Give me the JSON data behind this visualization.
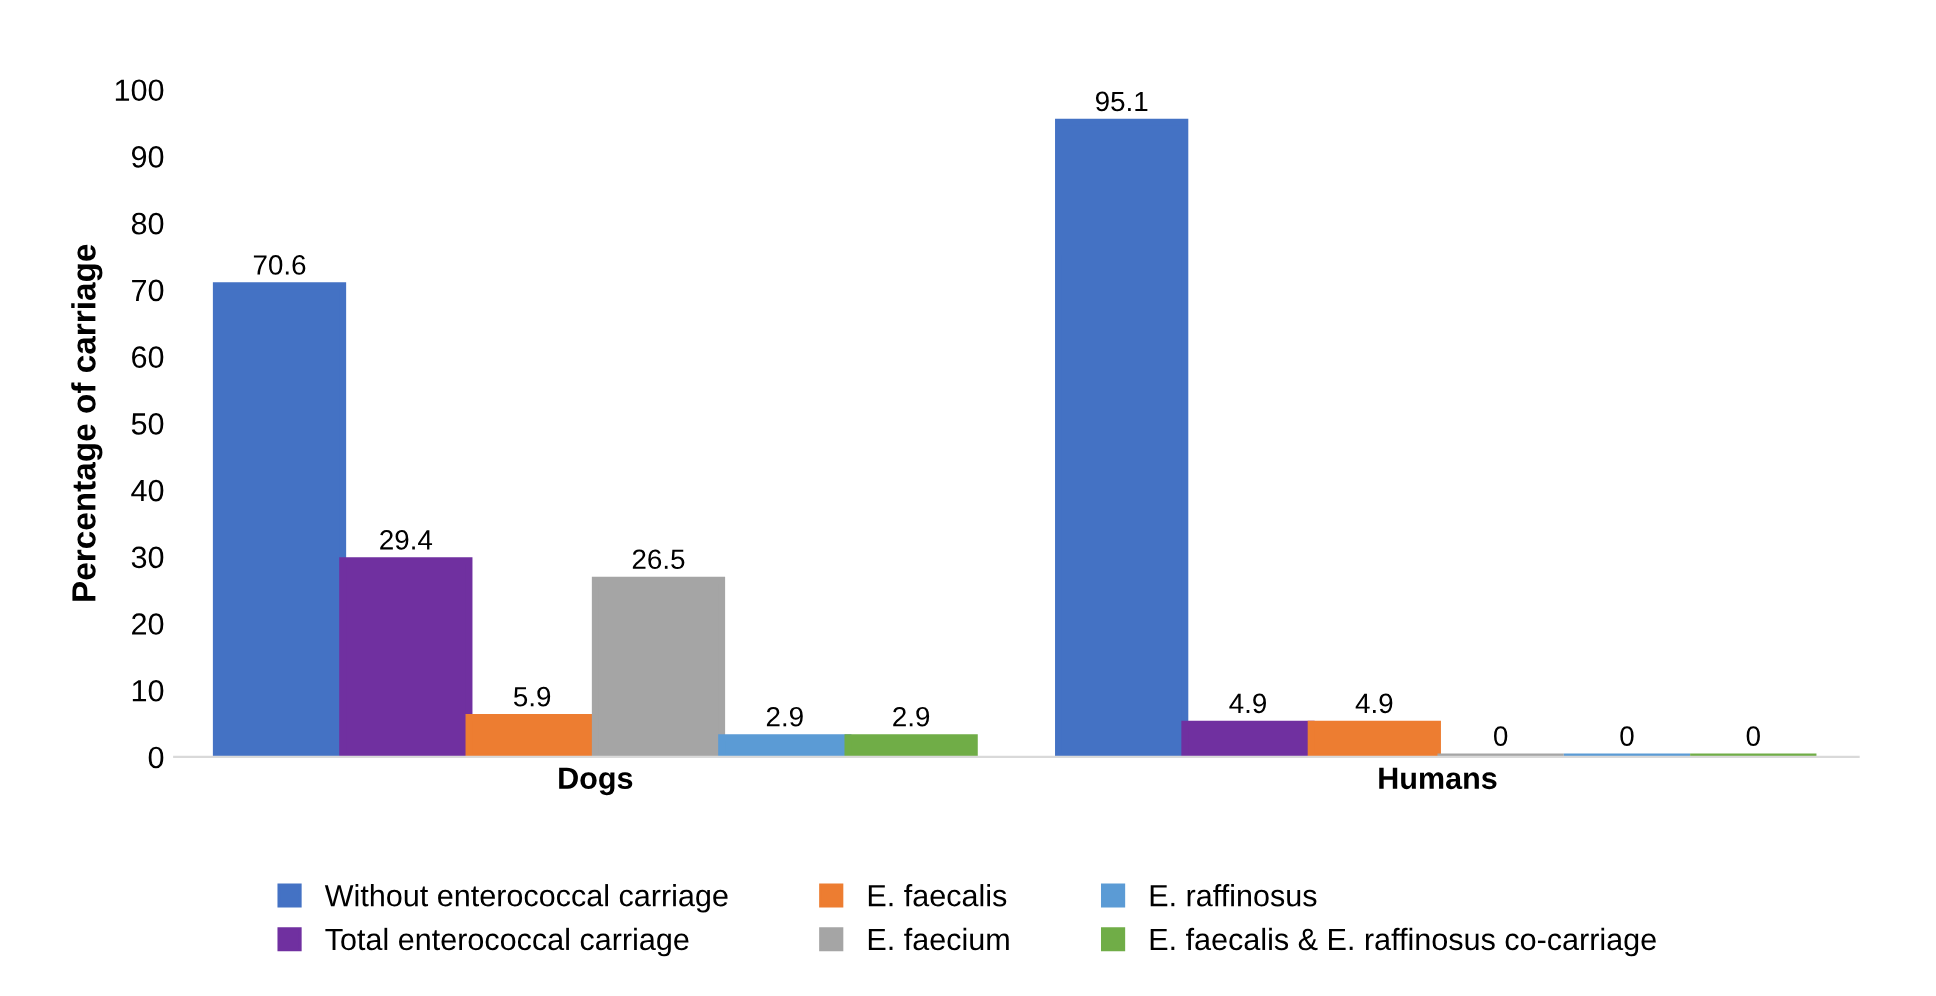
{
  "chart_data": {
    "type": "bar",
    "ylabel": "Percentage of carriage",
    "categories": [
      "Dogs",
      "Humans"
    ],
    "series": [
      {
        "name": "Without enterococcal carriage",
        "color": "#4472c4",
        "values": [
          70.6,
          95.1
        ]
      },
      {
        "name": "Total enterococcal carriage",
        "color": "#7030a0",
        "values": [
          29.4,
          4.9
        ]
      },
      {
        "name": "E. faecalis",
        "color": "#ed7d31",
        "values": [
          5.9,
          4.9
        ]
      },
      {
        "name": "E. faecium",
        "color": "#a5a5a5",
        "values": [
          26.5,
          0
        ]
      },
      {
        "name": "E. raffinosus",
        "color": "#5b9bd5",
        "values": [
          2.9,
          0
        ]
      },
      {
        "name": "E. faecalis & E. raffinosus co-carriage",
        "color": "#70ad47",
        "values": [
          2.9,
          0
        ]
      }
    ],
    "ylim": [
      0,
      100
    ],
    "yticks": [
      0,
      10,
      20,
      30,
      40,
      50,
      60,
      70,
      80,
      90,
      100
    ],
    "grid": false,
    "legend": "bottom",
    "data_labels": true
  }
}
